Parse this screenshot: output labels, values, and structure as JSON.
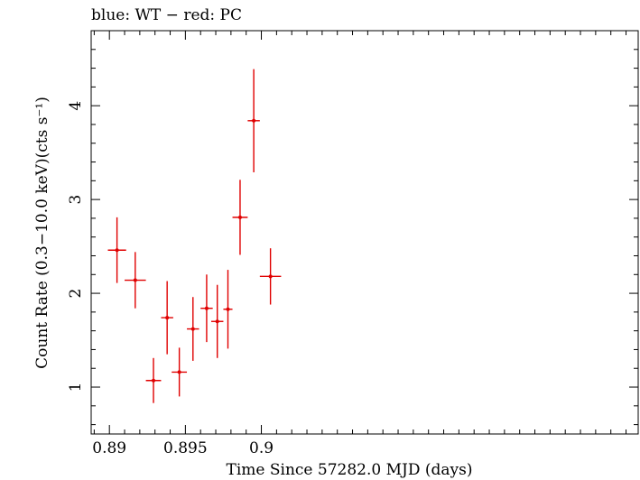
{
  "chart_data": {
    "type": "scatter",
    "title": "blue: WT − red: PC",
    "xlabel": "Time Since 57282.0 MJD (days)",
    "ylabel": "Count Rate (0.3−10.0 keV)(cts s⁻¹)",
    "xlim": [
      0.8888,
      0.9248
    ],
    "ylim": [
      0.5,
      4.8
    ],
    "x_ticks": [
      0.89,
      0.895,
      0.9
    ],
    "x_tick_labels": [
      "0.89",
      "0.895",
      "0.9"
    ],
    "y_ticks": [
      1,
      2,
      3,
      4
    ],
    "y_tick_labels": [
      "1",
      "2",
      "3",
      "4"
    ],
    "grid": false,
    "series": [
      {
        "color": "#e00000",
        "points": [
          {
            "x": 0.8905,
            "xerr": 0.0006,
            "y": 2.46,
            "yerr": 0.35
          },
          {
            "x": 0.8917,
            "xerr": 0.0007,
            "y": 2.14,
            "yerr": 0.3
          },
          {
            "x": 0.8929,
            "xerr": 0.0005,
            "y": 1.07,
            "yerr": 0.24
          },
          {
            "x": 0.8938,
            "xerr": 0.0004,
            "y": 1.74,
            "yerr": 0.39
          },
          {
            "x": 0.8946,
            "xerr": 0.0005,
            "y": 1.16,
            "yerr": 0.26
          },
          {
            "x": 0.8955,
            "xerr": 0.0004,
            "y": 1.62,
            "yerr": 0.34
          },
          {
            "x": 0.8964,
            "xerr": 0.0004,
            "y": 1.84,
            "yerr": 0.36
          },
          {
            "x": 0.8971,
            "xerr": 0.0004,
            "y": 1.7,
            "yerr": 0.39
          },
          {
            "x": 0.8978,
            "xerr": 0.0003,
            "y": 1.83,
            "yerr": 0.42
          },
          {
            "x": 0.8986,
            "xerr": 0.0005,
            "y": 2.81,
            "yerr": 0.4
          },
          {
            "x": 0.8995,
            "xerr": 0.0004,
            "y": 3.84,
            "yerr": 0.55
          },
          {
            "x": 0.9006,
            "xerr": 0.0007,
            "y": 2.18,
            "yerr": 0.3
          }
        ]
      }
    ]
  }
}
